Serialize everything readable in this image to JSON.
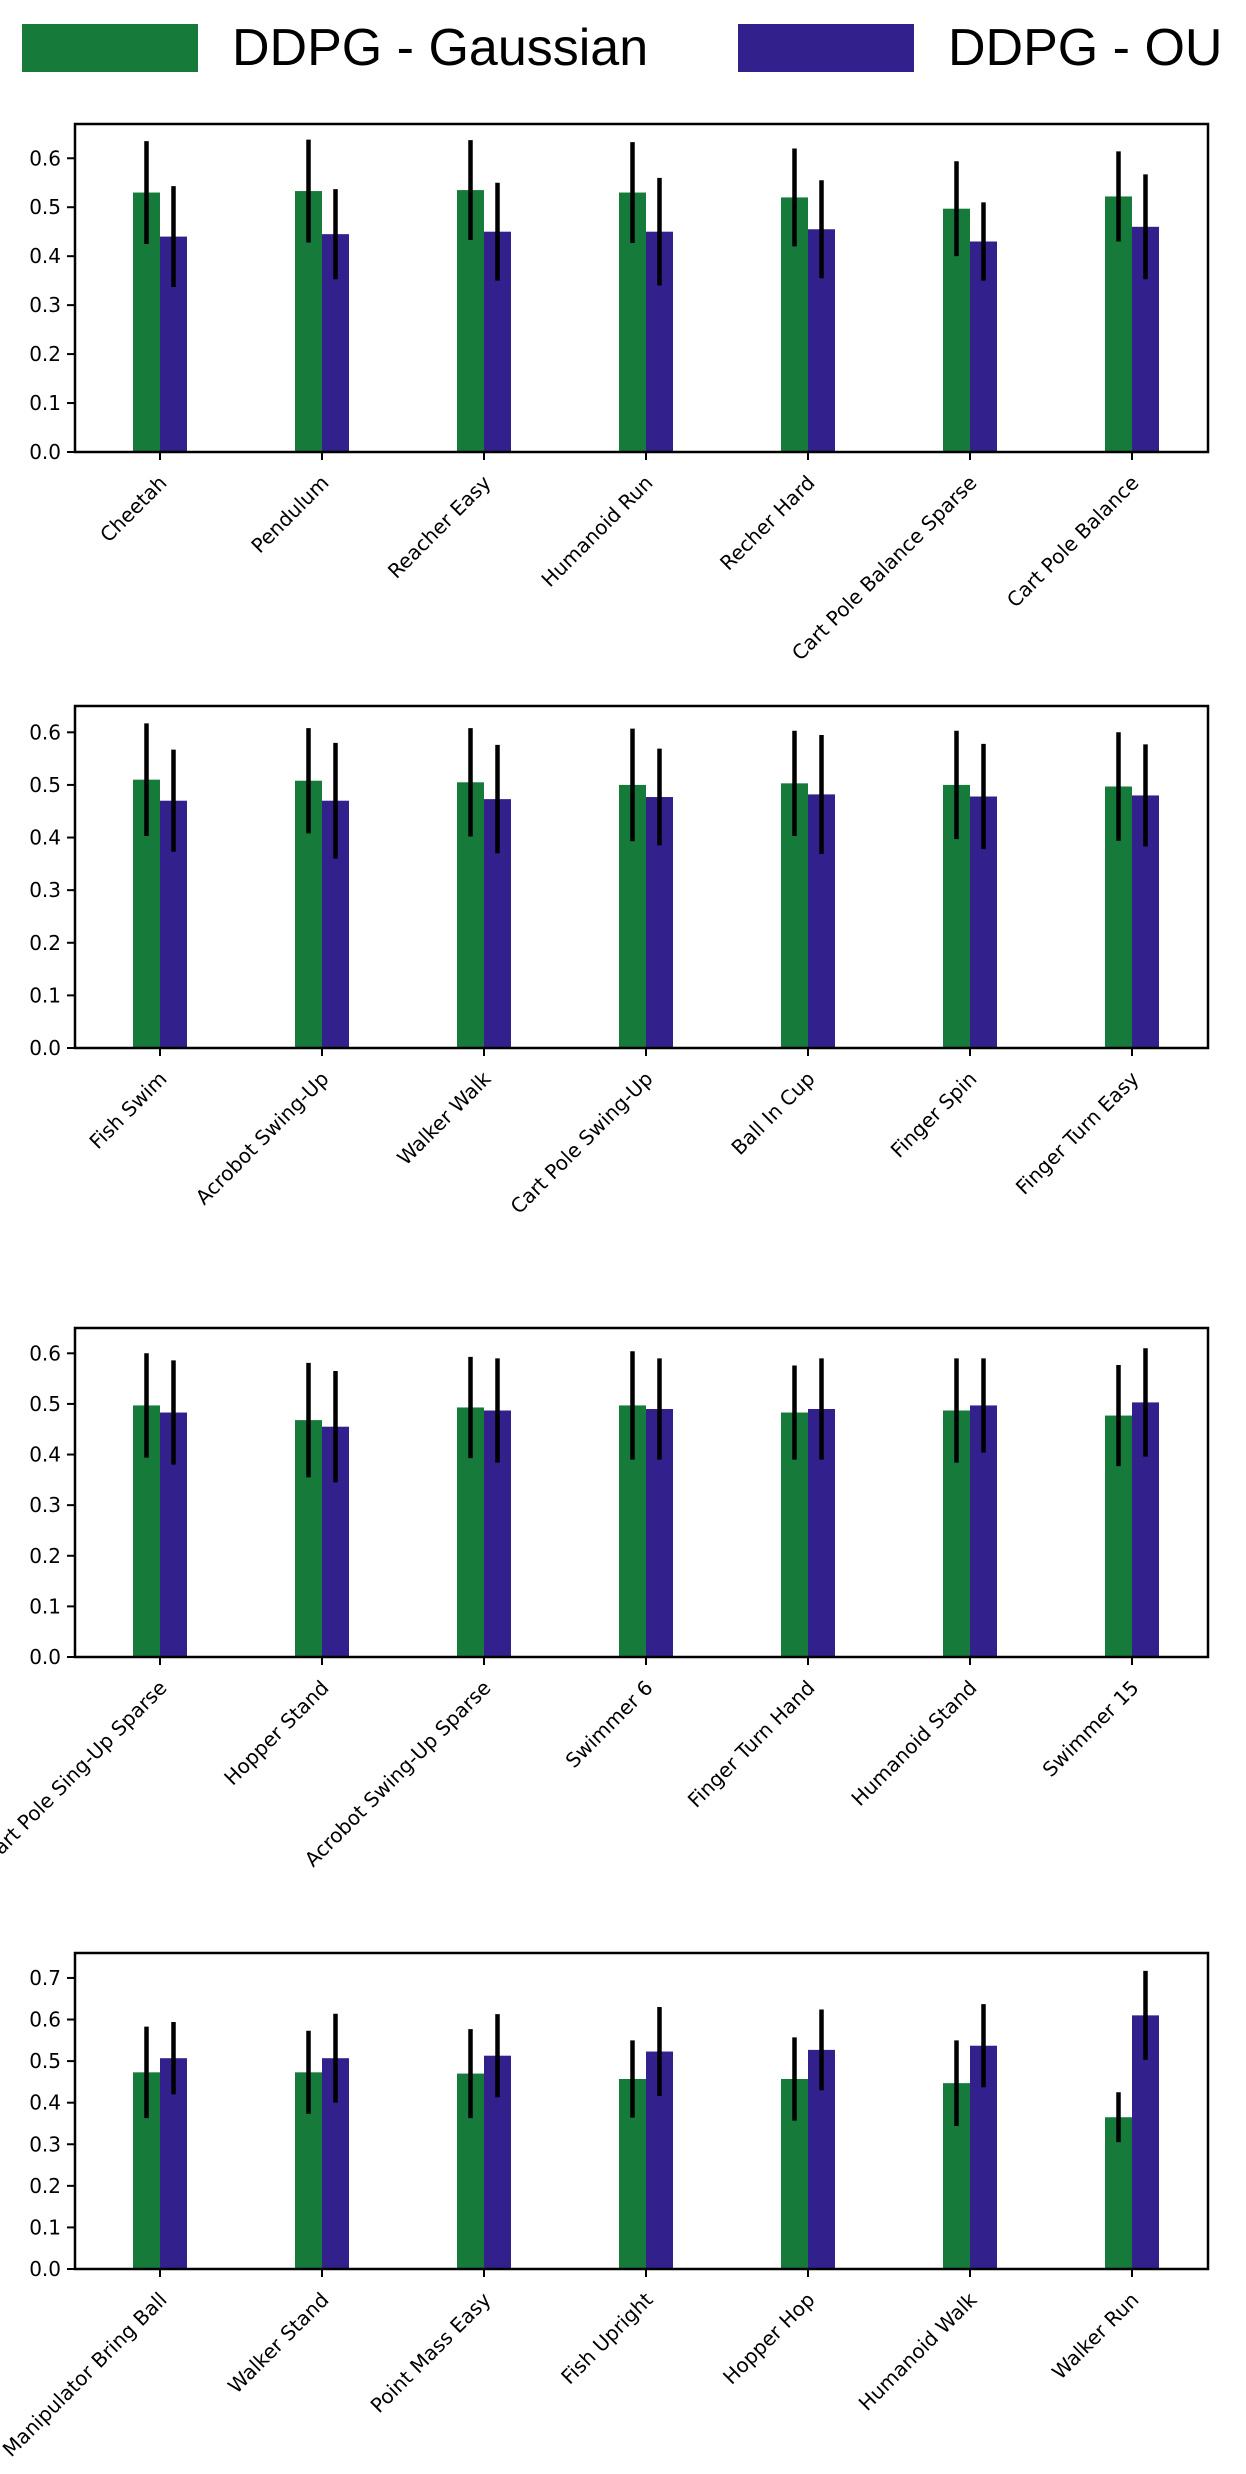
{
  "legend": {
    "gaussian_label": "DDPG - Gaussian",
    "ou_label": "DDPG - OU",
    "gaussian_color": "#157a3a",
    "ou_color": "#32218c"
  },
  "chart_data": [
    {
      "type": "bar",
      "title": "",
      "xlabel": "",
      "ylabel": "",
      "ylim": [
        0,
        0.67
      ],
      "yticks": [
        0.0,
        0.1,
        0.2,
        0.3,
        0.4,
        0.5,
        0.6
      ],
      "ytick_labels": [
        "0.0",
        "0.1",
        "0.2",
        "0.3",
        "0.4",
        "0.5",
        "0.6"
      ],
      "categories": [
        "Cheetah",
        "Pendulum",
        "Reacher Easy",
        "Humanoid Run",
        "Recher Hard",
        "Cart Pole Balance Sparse",
        "Cart Pole Balance"
      ],
      "series": [
        {
          "name": "DDPG - Gaussian",
          "values": [
            0.53,
            0.533,
            0.535,
            0.53,
            0.52,
            0.497,
            0.522
          ],
          "errors": [
            0.105,
            0.105,
            0.102,
            0.103,
            0.1,
            0.097,
            0.092
          ]
        },
        {
          "name": "DDPG - OU",
          "values": [
            0.44,
            0.445,
            0.45,
            0.45,
            0.455,
            0.43,
            0.46
          ],
          "errors": [
            0.103,
            0.092,
            0.1,
            0.11,
            0.1,
            0.08,
            0.107
          ]
        }
      ]
    },
    {
      "type": "bar",
      "title": "",
      "xlabel": "",
      "ylabel": "",
      "ylim": [
        0,
        0.65
      ],
      "yticks": [
        0.0,
        0.1,
        0.2,
        0.3,
        0.4,
        0.5,
        0.6
      ],
      "ytick_labels": [
        "0.0",
        "0.1",
        "0.2",
        "0.3",
        "0.4",
        "0.5",
        "0.6"
      ],
      "categories": [
        "Fish Swim",
        "Acrobot Swing-Up",
        "Walker Walk",
        "Cart Pole Swing-Up",
        "Ball In Cup",
        "Finger Spin",
        "Finger Turn Easy"
      ],
      "series": [
        {
          "name": "DDPG - Gaussian",
          "values": [
            0.51,
            0.508,
            0.505,
            0.5,
            0.503,
            0.5,
            0.497
          ],
          "errors": [
            0.107,
            0.1,
            0.103,
            0.107,
            0.1,
            0.103,
            0.103
          ]
        },
        {
          "name": "DDPG - OU",
          "values": [
            0.47,
            0.47,
            0.473,
            0.477,
            0.482,
            0.478,
            0.48
          ],
          "errors": [
            0.097,
            0.11,
            0.103,
            0.092,
            0.113,
            0.1,
            0.097
          ]
        }
      ]
    },
    {
      "type": "bar",
      "title": "",
      "xlabel": "",
      "ylabel": "",
      "ylim": [
        0,
        0.65
      ],
      "yticks": [
        0.0,
        0.1,
        0.2,
        0.3,
        0.4,
        0.5,
        0.6
      ],
      "ytick_labels": [
        "0.0",
        "0.1",
        "0.2",
        "0.3",
        "0.4",
        "0.5",
        "0.6"
      ],
      "categories": [
        "Cart Pole Sing-Up Sparse",
        "Hopper Stand",
        "Acrobot Swing-Up Sparse",
        "Swimmer 6",
        "Finger Turn Hand",
        "Humanoid Stand",
        "Swimmer 15"
      ],
      "series": [
        {
          "name": "DDPG - Gaussian",
          "values": [
            0.497,
            0.468,
            0.493,
            0.497,
            0.483,
            0.487,
            0.477
          ],
          "errors": [
            0.103,
            0.113,
            0.1,
            0.107,
            0.093,
            0.103,
            0.1
          ]
        },
        {
          "name": "DDPG - OU",
          "values": [
            0.483,
            0.455,
            0.487,
            0.49,
            0.49,
            0.497,
            0.503
          ],
          "errors": [
            0.103,
            0.11,
            0.103,
            0.1,
            0.1,
            0.093,
            0.107
          ]
        }
      ]
    },
    {
      "type": "bar",
      "title": "",
      "xlabel": "",
      "ylabel": "",
      "ylim": [
        0,
        0.76
      ],
      "yticks": [
        0.0,
        0.1,
        0.2,
        0.3,
        0.4,
        0.5,
        0.6,
        0.7
      ],
      "ytick_labels": [
        "0.0",
        "0.1",
        "0.2",
        "0.3",
        "0.4",
        "0.5",
        "0.6",
        "0.7"
      ],
      "categories": [
        "Manipulator Bring Ball",
        "Walker Stand",
        "Point Mass Easy",
        "Fish Upright",
        "Hopper Hop",
        "Humanoid Walk",
        "Walker Run"
      ],
      "series": [
        {
          "name": "DDPG - Gaussian",
          "values": [
            0.473,
            0.473,
            0.47,
            0.457,
            0.457,
            0.447,
            0.365
          ],
          "errors": [
            0.11,
            0.1,
            0.107,
            0.093,
            0.1,
            0.103,
            0.06
          ]
        },
        {
          "name": "DDPG - OU",
          "values": [
            0.507,
            0.507,
            0.513,
            0.523,
            0.527,
            0.537,
            0.61
          ],
          "errors": [
            0.087,
            0.107,
            0.1,
            0.107,
            0.097,
            0.1,
            0.107
          ]
        }
      ]
    }
  ]
}
